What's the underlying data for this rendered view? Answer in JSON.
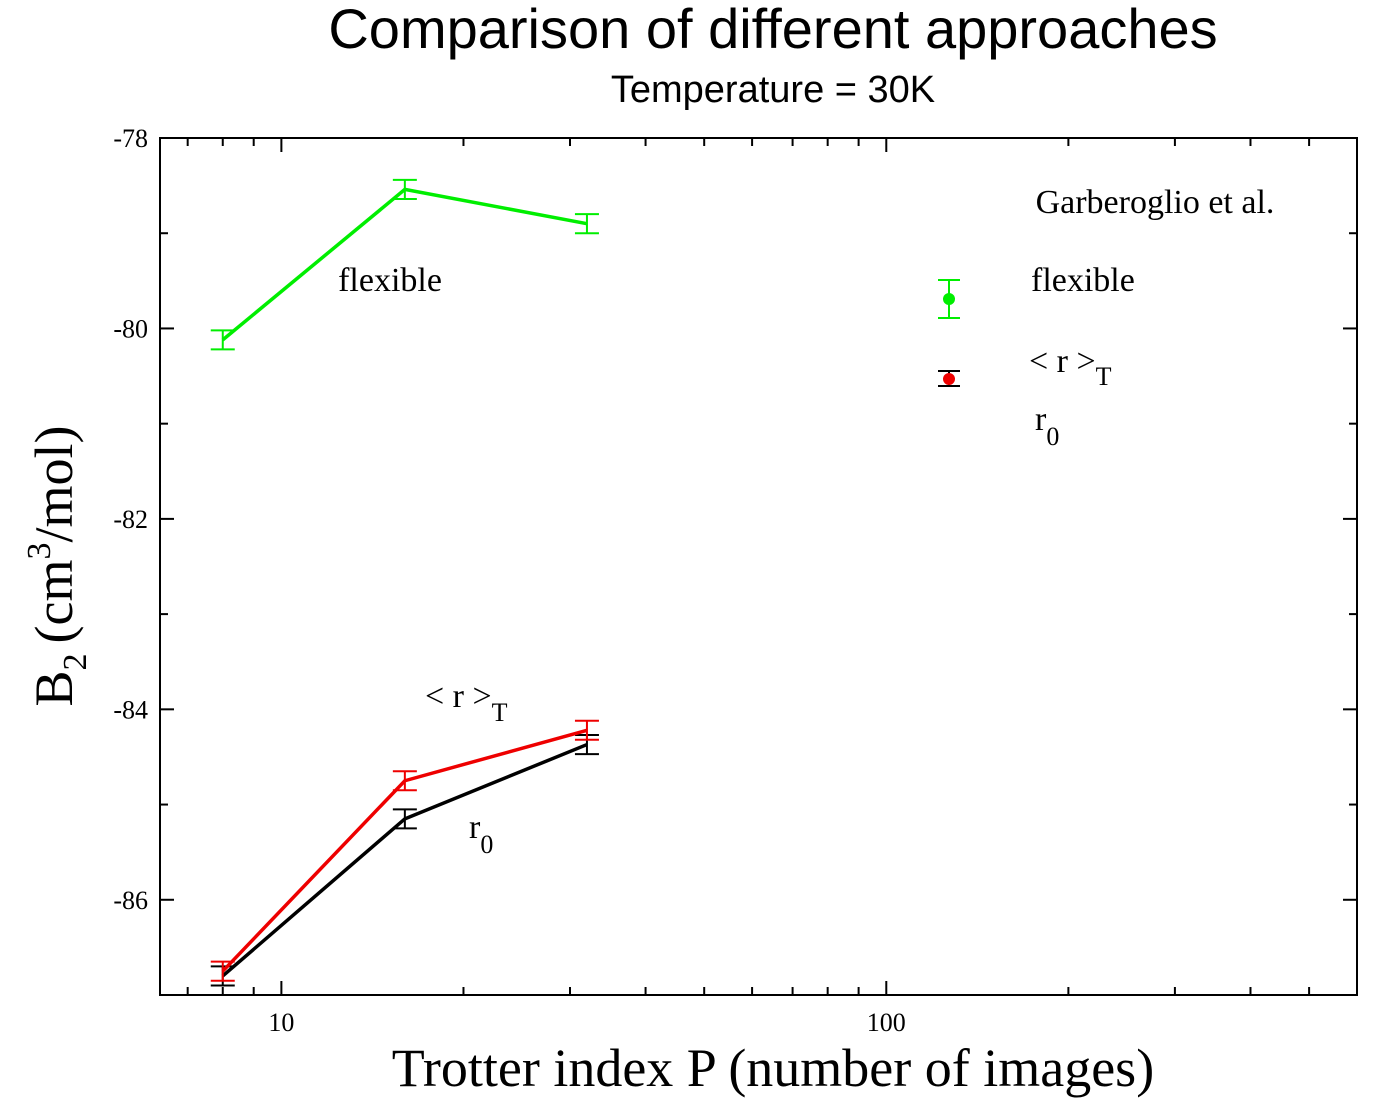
{
  "chart_data": {
    "type": "line",
    "title": "Comparison of different approaches",
    "subtitle": "Temperature = 30K",
    "xlabel": "Trotter index P (number of images)",
    "ylabel_main": "B",
    "ylabel_sub": "2",
    "ylabel_unit_pre": "(cm",
    "ylabel_unit_sup": "3",
    "ylabel_unit_post": "/mol)",
    "xscale": "log",
    "xlim": [
      6.3,
      600
    ],
    "ylim": [
      -87,
      -78
    ],
    "x_ticks": [
      10,
      100
    ],
    "y_ticks": [
      -78,
      -80,
      -82,
      -84,
      -86
    ],
    "grid": false,
    "series": [
      {
        "key": "flexible",
        "color": "#00ee00",
        "x": [
          8,
          16,
          32
        ],
        "y": [
          -80.12,
          -78.54,
          -78.9
        ],
        "err": [
          0.1,
          0.1,
          0.1
        ]
      },
      {
        "key": "r_avg",
        "color": "#ee0000",
        "x": [
          8,
          16,
          32
        ],
        "y": [
          -86.75,
          -84.75,
          -84.22
        ],
        "err": [
          0.1,
          0.1,
          0.1
        ]
      },
      {
        "key": "r0",
        "color": "#000000",
        "x": [
          8,
          16,
          32
        ],
        "y": [
          -86.8,
          -85.15,
          -84.37
        ],
        "err": [
          0.1,
          0.1,
          0.1
        ]
      }
    ],
    "curve_labels": {
      "flexible": "flexible",
      "r_avg_main": "< r >",
      "r_avg_sub": "T",
      "r0_main": "r",
      "r0_sub": "0"
    },
    "legend": {
      "position": "top-right",
      "heading": "Garberoglio et al.",
      "flexible_label": "flexible",
      "flexible_color": "#00ee00",
      "r_avg_label_main": "< r >",
      "r_avg_label_sub": "T",
      "r_avg_marker_color": "#ee0000",
      "r_avg_errorbar_color": "#000000",
      "r0_label_main": "r",
      "r0_label_sub": "0"
    }
  }
}
